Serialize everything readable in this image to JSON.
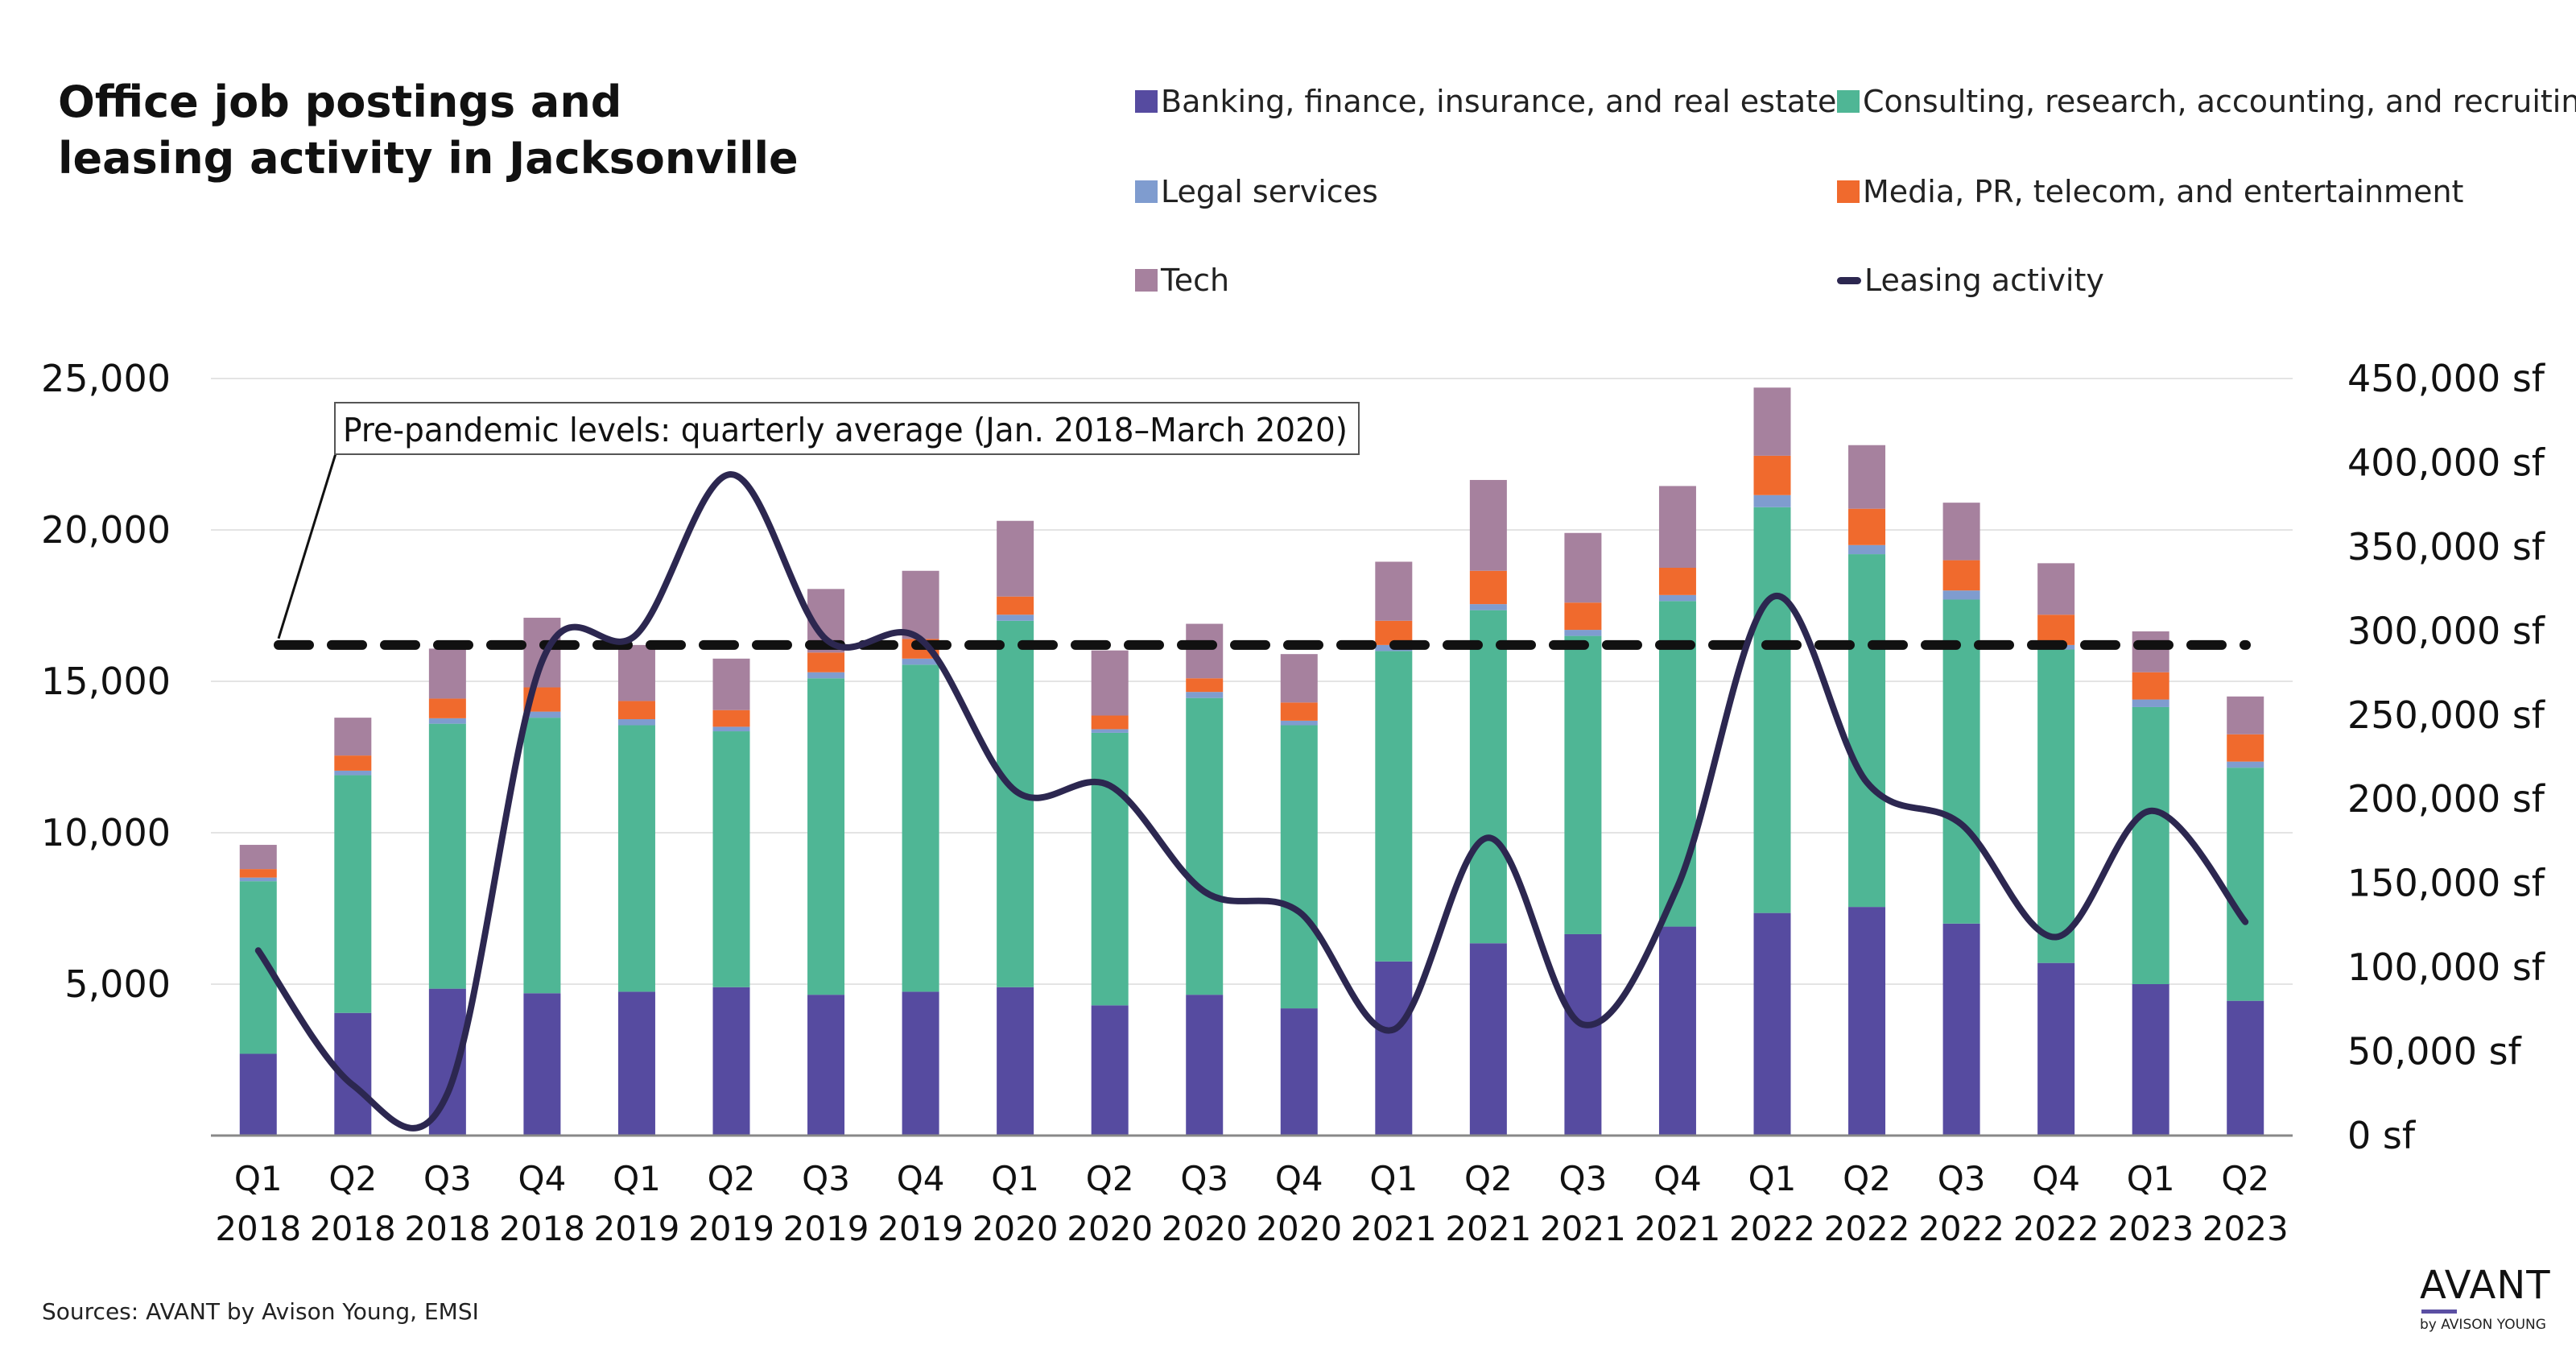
{
  "title_lines": [
    "Office job postings and",
    "leasing activity in Jacksonville"
  ],
  "source": "Sources: AVANT by Avison Young, EMSI",
  "logo": {
    "main": "AVANT",
    "sub": "by AVISON YOUNG"
  },
  "chart_data": {
    "type": "bar",
    "stacked": true,
    "categories": [
      [
        "Q1",
        "2018"
      ],
      [
        "Q2",
        "2018"
      ],
      [
        "Q3",
        "2018"
      ],
      [
        "Q4",
        "2018"
      ],
      [
        "Q1",
        "2019"
      ],
      [
        "Q2",
        "2019"
      ],
      [
        "Q3",
        "2019"
      ],
      [
        "Q4",
        "2019"
      ],
      [
        "Q1",
        "2020"
      ],
      [
        "Q2",
        "2020"
      ],
      [
        "Q3",
        "2020"
      ],
      [
        "Q4",
        "2020"
      ],
      [
        "Q1",
        "2021"
      ],
      [
        "Q2",
        "2021"
      ],
      [
        "Q3",
        "2021"
      ],
      [
        "Q4",
        "2021"
      ],
      [
        "Q1",
        "2022"
      ],
      [
        "Q2",
        "2022"
      ],
      [
        "Q3",
        "2022"
      ],
      [
        "Q4",
        "2022"
      ],
      [
        "Q1",
        "2023"
      ],
      [
        "Q2",
        "2023"
      ]
    ],
    "series": [
      {
        "name": "Banking, finance, insurance, and real estate",
        "color": "#564ba0",
        "values": [
          2700,
          4050,
          4850,
          4700,
          4750,
          4900,
          4650,
          4750,
          4900,
          4300,
          4650,
          4200,
          5750,
          6350,
          6650,
          6900,
          7350,
          7550,
          7000,
          5700,
          5000,
          4450
        ]
      },
      {
        "name": "Consulting, research, accounting, and recruiting",
        "color": "#4fb695",
        "values": [
          5700,
          7850,
          8750,
          9100,
          8800,
          8450,
          10450,
          10800,
          12100,
          9000,
          9800,
          9350,
          10250,
          11000,
          9850,
          10750,
          13400,
          11650,
          10700,
          10350,
          9150,
          7700
        ]
      },
      {
        "name": "Legal services",
        "color": "#7f9ccf",
        "values": [
          120,
          150,
          180,
          200,
          200,
          150,
          200,
          200,
          200,
          120,
          200,
          150,
          200,
          200,
          200,
          200,
          400,
          300,
          300,
          150,
          250,
          200
        ]
      },
      {
        "name": "Media, PR, telecom, and entertainment",
        "color": "#f06a2d",
        "values": [
          280,
          500,
          650,
          800,
          600,
          550,
          650,
          650,
          600,
          450,
          450,
          600,
          800,
          1100,
          900,
          900,
          1300,
          1200,
          1000,
          1000,
          900,
          900
        ]
      },
      {
        "name": "Tech",
        "color": "#a6819e",
        "values": [
          800,
          1250,
          1650,
          2300,
          1850,
          1700,
          2100,
          2250,
          2500,
          2150,
          1800,
          1600,
          1950,
          3000,
          2300,
          2700,
          2250,
          2100,
          1900,
          1700,
          1350,
          1250
        ]
      }
    ],
    "line_series": {
      "name": "Leasing activity",
      "color": "#2c2750",
      "axis": "right",
      "values": [
        110000,
        30000,
        25000,
        282000,
        298000,
        393000,
        295000,
        295000,
        205000,
        208000,
        145000,
        133000,
        63000,
        177000,
        66000,
        148000,
        320000,
        210000,
        185000,
        118000,
        193000,
        127000
      ]
    },
    "reference_line": {
      "label": "Pre-pandemic levels: quarterly average (Jan. 2018–March 2020)",
      "value": 16200,
      "axis": "left"
    },
    "left_axis": {
      "ylim": [
        0,
        25000
      ],
      "ticks": [
        5000,
        10000,
        15000,
        20000,
        25000
      ],
      "tick_labels": [
        "5,000",
        "10,000",
        "15,000",
        "20,000",
        "25,000"
      ]
    },
    "right_axis": {
      "ylim": [
        0,
        450000
      ],
      "ticks": [
        0,
        50000,
        100000,
        150000,
        200000,
        250000,
        300000,
        350000,
        400000,
        450000
      ],
      "tick_labels": [
        "0 sf",
        "50,000 sf",
        "100,000 sf",
        "150,000 sf",
        "200,000 sf",
        "250,000 sf",
        "300,000 sf",
        "350,000 sf",
        "400,000 sf",
        "450,000 sf"
      ]
    },
    "grid": true,
    "legend_position": "top-right"
  }
}
